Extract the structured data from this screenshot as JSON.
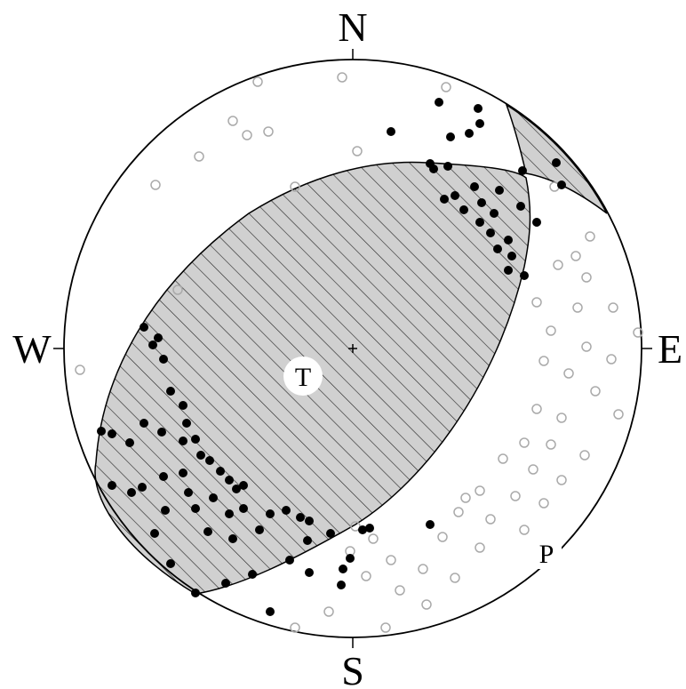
{
  "labels": {
    "north": "N",
    "east": "E",
    "south": "S",
    "west": "W",
    "t_axis": "T",
    "p_axis": "P"
  }
}
